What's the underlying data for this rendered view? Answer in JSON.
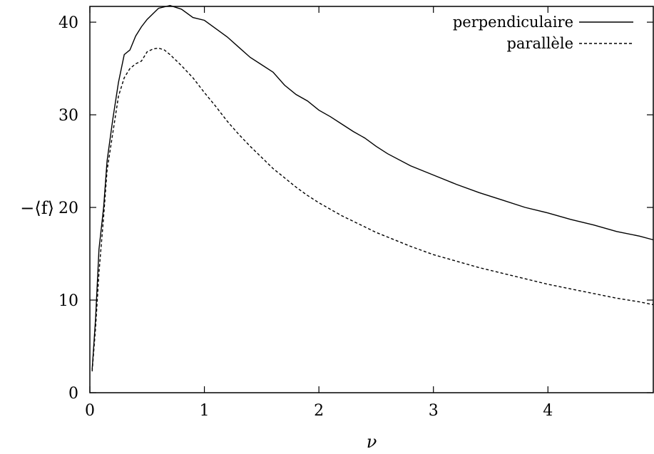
{
  "chart_data": {
    "type": "line",
    "xlabel": "ν",
    "ylabel": "−⟨f⟩",
    "xlim": [
      0,
      4.92
    ],
    "ylim": [
      0,
      41.7
    ],
    "xticks": [
      0,
      1,
      2,
      3,
      4
    ],
    "yticks": [
      0,
      10,
      20,
      30,
      40
    ],
    "legend_position": "top-right",
    "grid": false,
    "series": [
      {
        "name": "perpendiculaire",
        "style": "solid",
        "color": "#000000",
        "x": [
          0.02,
          0.05,
          0.08,
          0.12,
          0.15,
          0.2,
          0.25,
          0.3,
          0.35,
          0.4,
          0.45,
          0.5,
          0.6,
          0.7,
          0.8,
          0.9,
          1.0,
          1.1,
          1.2,
          1.3,
          1.4,
          1.5,
          1.6,
          1.7,
          1.8,
          1.9,
          2.0,
          2.1,
          2.2,
          2.3,
          2.4,
          2.5,
          2.6,
          2.8,
          3.0,
          3.2,
          3.4,
          3.6,
          3.8,
          4.0,
          4.2,
          4.4,
          4.6,
          4.8,
          4.92
        ],
        "y": [
          2.5,
          8,
          15.5,
          20,
          25,
          29.5,
          33.5,
          36.5,
          37,
          38.5,
          39.5,
          40.3,
          41.5,
          41.8,
          41.4,
          40.5,
          40.2,
          39.3,
          38.4,
          37.3,
          36.2,
          35.4,
          34.6,
          33.2,
          32.2,
          31.5,
          30.5,
          29.8,
          29,
          28.2,
          27.5,
          26.6,
          25.8,
          24.5,
          23.5,
          22.5,
          21.6,
          20.8,
          20,
          19.4,
          18.7,
          18.1,
          17.4,
          16.9,
          16.5
        ]
      },
      {
        "name": "parallèle",
        "style": "dashed",
        "color": "#000000",
        "x": [
          0.02,
          0.05,
          0.08,
          0.12,
          0.15,
          0.2,
          0.25,
          0.3,
          0.35,
          0.4,
          0.45,
          0.5,
          0.55,
          0.6,
          0.65,
          0.7,
          0.8,
          0.9,
          1.0,
          1.1,
          1.2,
          1.3,
          1.4,
          1.5,
          1.6,
          1.7,
          1.8,
          1.9,
          2.0,
          2.1,
          2.2,
          2.3,
          2.4,
          2.5,
          2.6,
          2.8,
          3.0,
          3.2,
          3.4,
          3.6,
          3.8,
          4.0,
          4.2,
          4.4,
          4.6,
          4.8,
          4.92
        ],
        "y": [
          2.3,
          7,
          13,
          19,
          24,
          28,
          32,
          34,
          35,
          35.5,
          35.8,
          36.8,
          37.1,
          37.2,
          37,
          36.5,
          35.3,
          34,
          32.4,
          30.9,
          29.3,
          27.9,
          26.6,
          25.4,
          24.2,
          23.2,
          22.2,
          21.3,
          20.5,
          19.8,
          19.1,
          18.5,
          17.9,
          17.3,
          16.8,
          15.8,
          14.9,
          14.2,
          13.5,
          12.9,
          12.3,
          11.7,
          11.2,
          10.7,
          10.2,
          9.8,
          9.5
        ]
      }
    ]
  }
}
